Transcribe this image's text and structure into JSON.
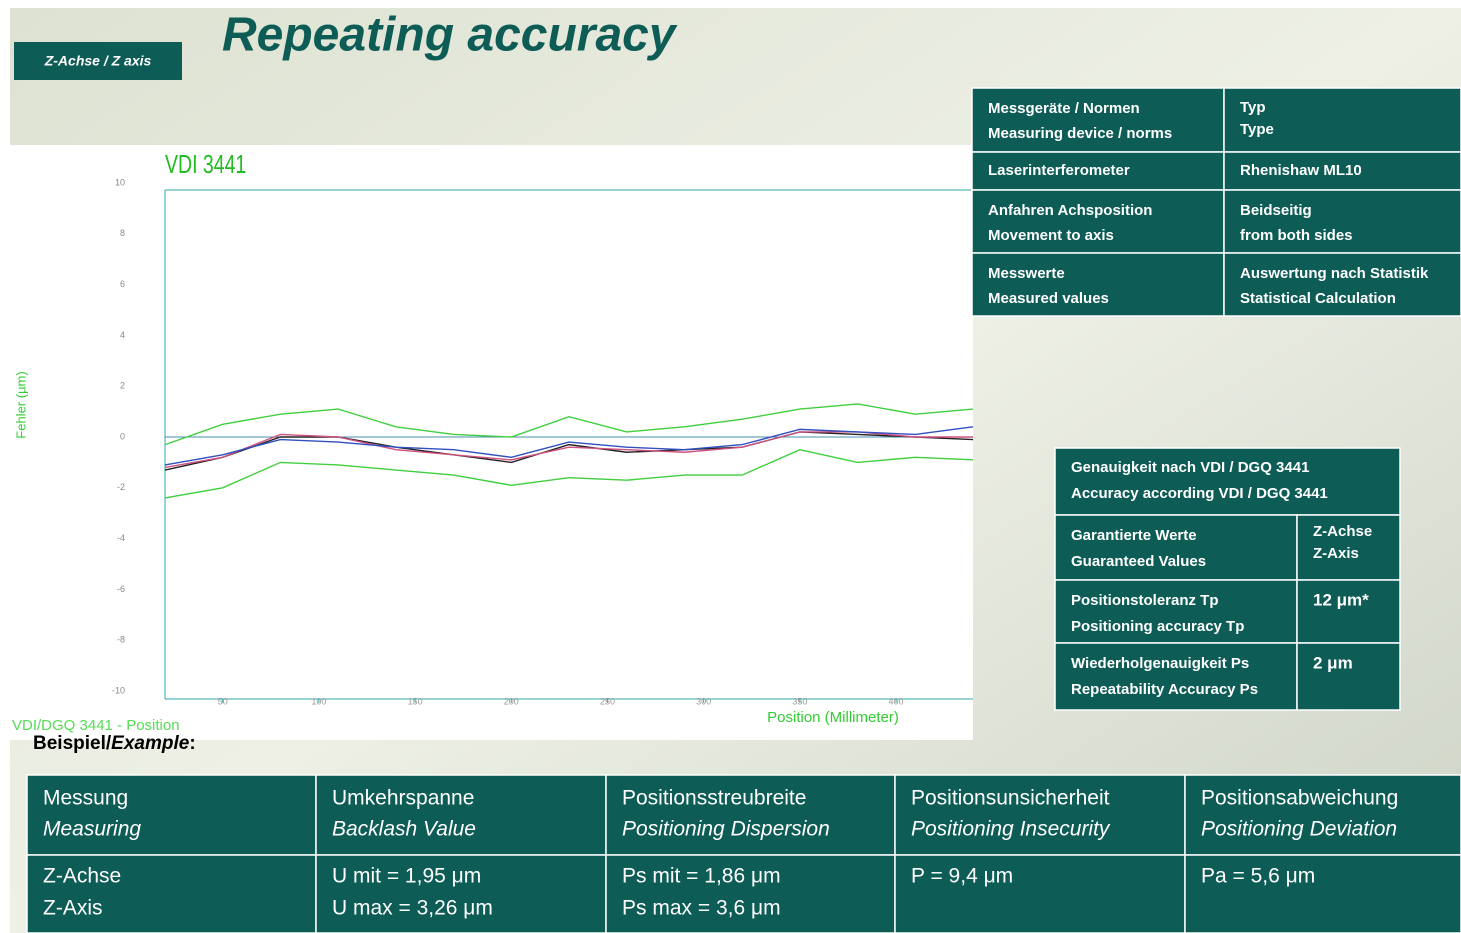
{
  "badge": "Z-Achse / Z axis",
  "title": "Repeating accuracy",
  "chart_data": {
    "type": "line",
    "title": "VDI 3441",
    "ylabel": "Fehler (µm)",
    "xlabel": "Position (Millimeter)",
    "x": [
      20,
      50,
      80,
      110,
      140,
      170,
      200,
      230,
      260,
      290,
      320,
      350,
      380,
      410,
      440
    ],
    "xlim": [
      20,
      440
    ],
    "xticks": [
      50,
      100,
      150,
      200,
      250,
      300,
      350,
      400
    ],
    "ylim": [
      -10,
      10
    ],
    "yticks": [
      -10,
      -8,
      -6,
      -4,
      -2,
      0,
      2,
      4,
      6,
      8,
      10
    ],
    "series": [
      {
        "color": "#3fcf3f",
        "values": [
          -0.3,
          0.5,
          0.9,
          1.1,
          0.4,
          0.1,
          0,
          0.8,
          0.2,
          0.4,
          0.7,
          1.1,
          1.3,
          0.9,
          1.1
        ]
      },
      {
        "color": "#3fcf3f",
        "values": [
          -2.4,
          -2,
          -1,
          -1.1,
          -1.3,
          -1.5,
          -1.9,
          -1.6,
          -1.7,
          -1.5,
          -1.5,
          -0.5,
          -1,
          -0.8,
          -0.9
        ]
      },
      {
        "color": "#222222",
        "values": [
          -1.3,
          -0.8,
          0,
          0,
          -0.4,
          -0.7,
          -1,
          -0.3,
          -0.6,
          -0.5,
          -0.4,
          0.2,
          0.1,
          0,
          -0.1
        ]
      },
      {
        "color": "#d05080",
        "values": [
          -1.2,
          -0.8,
          0.1,
          0,
          -0.5,
          -0.7,
          -0.9,
          -0.4,
          -0.5,
          -0.6,
          -0.4,
          0.2,
          0.2,
          0,
          0
        ]
      },
      {
        "color": "#3050c0",
        "values": [
          -1.1,
          -0.7,
          -0.1,
          -0.2,
          -0.4,
          -0.5,
          -0.8,
          -0.2,
          -0.4,
          -0.5,
          -0.3,
          0.3,
          0.2,
          0.1,
          0.4
        ]
      }
    ],
    "footer": "VDI/DGQ 3441 - Position"
  },
  "example_label": [
    "Beispiel/",
    "Example",
    ":"
  ],
  "device_table": {
    "rows": [
      [
        [
          "Messgeräte / Normen",
          "Measuring device / norms"
        ],
        [
          "Typ",
          "Type"
        ]
      ],
      [
        [
          "Laserinterferometer"
        ],
        [
          "Rhenishaw ML10"
        ]
      ],
      [
        [
          "Anfahren Achsposition",
          "Movement to axis"
        ],
        [
          "Beidseitig",
          "from both sides"
        ]
      ],
      [
        [
          "Messwerte",
          "Measured values"
        ],
        [
          "Auswertung nach Statistik",
          "Statistical Calculation"
        ]
      ]
    ]
  },
  "accuracy_table": {
    "header": [
      "Genauigkeit nach VDI / DGQ 3441",
      "Accuracy according VDI / DGQ 3441"
    ],
    "rows": [
      [
        [
          "Garantierte Werte",
          "Guaranteed Values"
        ],
        [
          "Z-Achse",
          "Z-Axis"
        ]
      ],
      [
        [
          "Positionstoleranz Tp",
          "Positioning accuracy Tp"
        ],
        [
          "12 μm*"
        ]
      ],
      [
        [
          "Wiederholgenauigkeit Ps",
          "Repeatability Accuracy Ps"
        ],
        [
          "2 μm"
        ]
      ]
    ]
  },
  "example_table": {
    "header": [
      [
        "Messung",
        "Measuring"
      ],
      [
        "Umkehrspanne",
        "Backlash Value"
      ],
      [
        "Positionsstreubreite",
        "Positioning Dispersion"
      ],
      [
        "Positionsunsicherheit",
        "Positioning Insecurity"
      ],
      [
        "Positionsabweichung",
        "Positioning Deviation"
      ]
    ],
    "rows": [
      [
        [
          "Z-Achse",
          "Z-Axis"
        ],
        [
          "U mit = 1,95 μm",
          "U max = 3,26 μm"
        ],
        [
          "Ps mit = 1,86 μm",
          "Ps max = 3,6 μm"
        ],
        [
          "P = 9,4 μm"
        ],
        [
          "Pa = 5,6 μm"
        ]
      ]
    ]
  }
}
